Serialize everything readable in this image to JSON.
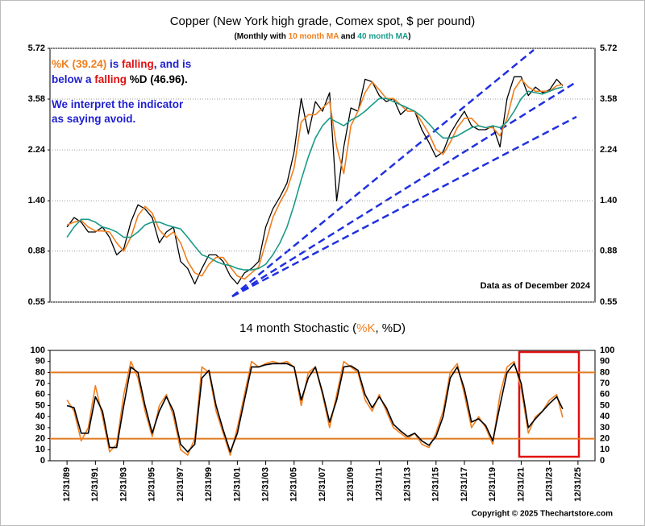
{
  "chart_data": [
    {
      "type": "line",
      "log_scale": true,
      "title": [
        {
          "text": "Copper (New York high grade, Comex spot, $ per pound)",
          "color": "#000000"
        }
      ],
      "subtitle": [
        {
          "text": "(Monthly with ",
          "color": "#000000"
        },
        {
          "text": "10 month MA",
          "color": "#f07f1e"
        },
        {
          "text": " and ",
          "color": "#000000"
        },
        {
          "text": "40 month MA",
          "color": "#1a9a8a"
        },
        {
          "text": ")",
          "color": "#000000"
        }
      ],
      "annotations": [
        {
          "parts": [
            {
              "text": "%K (39.24)",
              "color": "#f07f1e"
            },
            {
              "text": " is ",
              "color": "#1f1fd0"
            },
            {
              "text": "falling",
              "color": "#e01010"
            },
            {
              "text": ", and is",
              "color": "#1f1fd0"
            }
          ]
        },
        {
          "parts": [
            {
              "text": "below a ",
              "color": "#1f1fd0"
            },
            {
              "text": "falling",
              "color": "#e01010"
            },
            {
              "text": " %D (46.96).",
              "color": "#000000"
            }
          ]
        },
        {
          "parts": [
            {
              "text": "We interpret the indicator",
              "color": "#1f1fd0"
            }
          ]
        },
        {
          "parts": [
            {
              "text": "as saying avoid.",
              "color": "#1f1fd0"
            }
          ]
        },
        {
          "parts": [
            {
              "text": "Data as of December 2024",
              "color": "#000000"
            }
          ]
        }
      ],
      "x": [
        1990,
        1990.5,
        1991,
        1991.5,
        1992,
        1992.5,
        1993,
        1993.5,
        1994,
        1994.5,
        1995,
        1995.5,
        1996,
        1996.5,
        1997,
        1997.5,
        1998,
        1998.5,
        1999,
        1999.5,
        2000,
        2000.5,
        2001,
        2001.5,
        2002,
        2002.5,
        2003,
        2003.5,
        2004,
        2004.5,
        2005,
        2005.5,
        2006,
        2006.5,
        2007,
        2007.5,
        2008,
        2008.5,
        2009,
        2009.5,
        2010,
        2010.5,
        2011,
        2011.5,
        2012,
        2012.5,
        2013,
        2013.5,
        2014,
        2014.5,
        2015,
        2015.5,
        2016,
        2016.5,
        2017,
        2017.5,
        2018,
        2018.5,
        2019,
        2019.5,
        2020,
        2020.5,
        2021,
        2021.5,
        2022,
        2022.5,
        2023,
        2023.5,
        2024,
        2024.5,
        2024.92
      ],
      "series": [
        {
          "name": "Price",
          "color": "#000000",
          "width": 1.3,
          "values": [
            1.1,
            1.2,
            1.15,
            1.05,
            1.05,
            1.1,
            1.0,
            0.85,
            0.9,
            1.15,
            1.35,
            1.3,
            1.2,
            0.95,
            1.05,
            1.1,
            0.8,
            0.75,
            0.65,
            0.75,
            0.85,
            0.85,
            0.8,
            0.7,
            0.65,
            0.72,
            0.75,
            0.8,
            1.1,
            1.3,
            1.45,
            1.65,
            2.2,
            3.6,
            2.6,
            3.5,
            3.2,
            3.8,
            1.4,
            2.3,
            3.3,
            3.2,
            4.3,
            4.2,
            3.7,
            3.5,
            3.6,
            3.1,
            3.3,
            3.2,
            2.7,
            2.4,
            2.1,
            2.2,
            2.6,
            2.9,
            3.2,
            2.8,
            2.7,
            2.7,
            2.8,
            2.3,
            3.6,
            4.4,
            4.4,
            3.7,
            4.0,
            3.8,
            3.9,
            4.3,
            4.05
          ]
        },
        {
          "name": "10 month MA",
          "color": "#f07f1e",
          "width": 1.6,
          "values": [
            1.12,
            1.15,
            1.17,
            1.1,
            1.06,
            1.06,
            1.05,
            0.95,
            0.88,
            1.0,
            1.22,
            1.33,
            1.25,
            1.07,
            1.0,
            1.05,
            0.95,
            0.8,
            0.72,
            0.7,
            0.78,
            0.83,
            0.83,
            0.76,
            0.7,
            0.68,
            0.72,
            0.76,
            0.95,
            1.2,
            1.38,
            1.55,
            1.9,
            2.9,
            3.1,
            3.1,
            3.3,
            3.5,
            2.3,
            1.8,
            2.8,
            3.2,
            3.8,
            4.2,
            3.9,
            3.6,
            3.6,
            3.4,
            3.2,
            3.2,
            2.9,
            2.6,
            2.25,
            2.15,
            2.4,
            2.75,
            3.0,
            3.0,
            2.8,
            2.75,
            2.75,
            2.55,
            3.0,
            3.9,
            4.3,
            4.0,
            3.85,
            3.85,
            3.85,
            4.05,
            4.1
          ]
        },
        {
          "name": "40 month MA",
          "color": "#1a9a8a",
          "width": 1.6,
          "values": [
            1.0,
            1.1,
            1.18,
            1.18,
            1.15,
            1.1,
            1.08,
            1.05,
            1.0,
            1.0,
            1.05,
            1.12,
            1.15,
            1.15,
            1.12,
            1.1,
            1.08,
            1.0,
            0.92,
            0.85,
            0.83,
            0.8,
            0.78,
            0.77,
            0.75,
            0.74,
            0.74,
            0.75,
            0.78,
            0.85,
            0.95,
            1.1,
            1.35,
            1.7,
            2.1,
            2.5,
            2.8,
            3.0,
            2.9,
            2.8,
            2.95,
            3.05,
            3.2,
            3.4,
            3.6,
            3.6,
            3.5,
            3.4,
            3.3,
            3.2,
            3.05,
            2.85,
            2.65,
            2.5,
            2.5,
            2.55,
            2.65,
            2.75,
            2.8,
            2.75,
            2.8,
            2.75,
            2.9,
            3.2,
            3.6,
            3.85,
            3.8,
            3.75,
            3.85,
            3.95,
            4.0
          ]
        }
      ],
      "xlim": [
        1988.8,
        2027.2
      ],
      "ylim": [
        0.55,
        5.72
      ],
      "yticks": [
        0.55,
        0.88,
        {
          "value": 1.4,
          "label": "1.40"
        },
        2.24,
        3.58,
        5.72
      ],
      "grid": true
    },
    {
      "type": "line",
      "log_scale": false,
      "title": [
        {
          "text": "14 month Stochastic (",
          "color": "#000000"
        },
        {
          "text": "%K",
          "color": "#f07f1e"
        },
        {
          "text": ", %D)",
          "color": "#000000"
        }
      ],
      "x": [
        1990,
        1990.5,
        1991,
        1991.5,
        1992,
        1992.5,
        1993,
        1993.5,
        1994,
        1994.5,
        1995,
        1995.5,
        1996,
        1996.5,
        1997,
        1997.5,
        1998,
        1998.5,
        1999,
        1999.5,
        2000,
        2000.5,
        2001,
        2001.5,
        2002,
        2002.5,
        2003,
        2003.5,
        2004,
        2004.5,
        2005,
        2005.5,
        2006,
        2006.5,
        2007,
        2007.5,
        2008,
        2008.5,
        2009,
        2009.5,
        2010,
        2010.5,
        2011,
        2011.5,
        2012,
        2012.5,
        2013,
        2013.5,
        2014,
        2014.5,
        2015,
        2015.5,
        2016,
        2016.5,
        2017,
        2017.5,
        2018,
        2018.5,
        2019,
        2019.5,
        2020,
        2020.5,
        2021,
        2021.5,
        2022,
        2022.5,
        2023,
        2023.5,
        2024,
        2024.5,
        2024.92
      ],
      "series": [
        {
          "name": "%K",
          "color": "#f07f1e",
          "width": 1.6,
          "values": [
            55,
            45,
            18,
            30,
            68,
            40,
            8,
            15,
            60,
            90,
            75,
            45,
            22,
            50,
            60,
            40,
            10,
            5,
            20,
            85,
            80,
            45,
            25,
            5,
            30,
            60,
            90,
            85,
            88,
            90,
            88,
            90,
            85,
            50,
            80,
            85,
            60,
            30,
            60,
            90,
            85,
            80,
            55,
            45,
            60,
            45,
            30,
            25,
            20,
            25,
            15,
            12,
            25,
            45,
            80,
            88,
            60,
            30,
            40,
            30,
            15,
            60,
            85,
            90,
            65,
            25,
            40,
            45,
            55,
            60,
            39.24
          ]
        },
        {
          "name": "%D",
          "color": "#000000",
          "width": 1.6,
          "values": [
            50,
            48,
            25,
            25,
            58,
            45,
            12,
            12,
            50,
            85,
            80,
            50,
            25,
            45,
            58,
            45,
            15,
            8,
            15,
            75,
            82,
            50,
            28,
            8,
            25,
            55,
            85,
            85,
            87,
            88,
            88,
            88,
            85,
            55,
            75,
            85,
            62,
            35,
            55,
            85,
            86,
            82,
            60,
            48,
            58,
            48,
            33,
            27,
            22,
            25,
            18,
            14,
            22,
            40,
            75,
            85,
            65,
            35,
            38,
            32,
            18,
            50,
            80,
            88,
            70,
            30,
            38,
            45,
            52,
            58,
            46.96
          ]
        }
      ],
      "xlim": [
        1988.8,
        2027.2
      ],
      "ylim": [
        0,
        100
      ],
      "yticks": [
        0,
        10,
        20,
        30,
        40,
        50,
        60,
        70,
        80,
        90,
        100
      ],
      "reference_lines": [
        20,
        80
      ],
      "reference_color": "#e07b20",
      "xticks": [
        {
          "value": 1990,
          "label": "12/31/89"
        },
        {
          "value": 1992,
          "label": "12/31/91"
        },
        {
          "value": 1994,
          "label": "12/31/93"
        },
        {
          "value": 1996,
          "label": "12/31/95"
        },
        {
          "value": 1998,
          "label": "12/31/97"
        },
        {
          "value": 2000,
          "label": "12/31/99"
        },
        {
          "value": 2002,
          "label": "12/31/01"
        },
        {
          "value": 2004,
          "label": "12/31/03"
        },
        {
          "value": 2006,
          "label": "12/31/05"
        },
        {
          "value": 2008,
          "label": "12/31/07"
        },
        {
          "value": 2010,
          "label": "12/31/09"
        },
        {
          "value": 2012,
          "label": "12/31/11"
        },
        {
          "value": 2014,
          "label": "12/31/13"
        },
        {
          "value": 2016,
          "label": "12/31/15"
        },
        {
          "value": 2018,
          "label": "12/31/17"
        },
        {
          "value": 2020,
          "label": "12/31/19"
        },
        {
          "value": 2022,
          "label": "12/31/21"
        },
        {
          "value": 2024,
          "label": "12/31/23"
        },
        {
          "value": 2026,
          "label": "12/31/25"
        }
      ],
      "grid": false
    }
  ],
  "footer": "Copyright © 2025 Thechartstore.com"
}
